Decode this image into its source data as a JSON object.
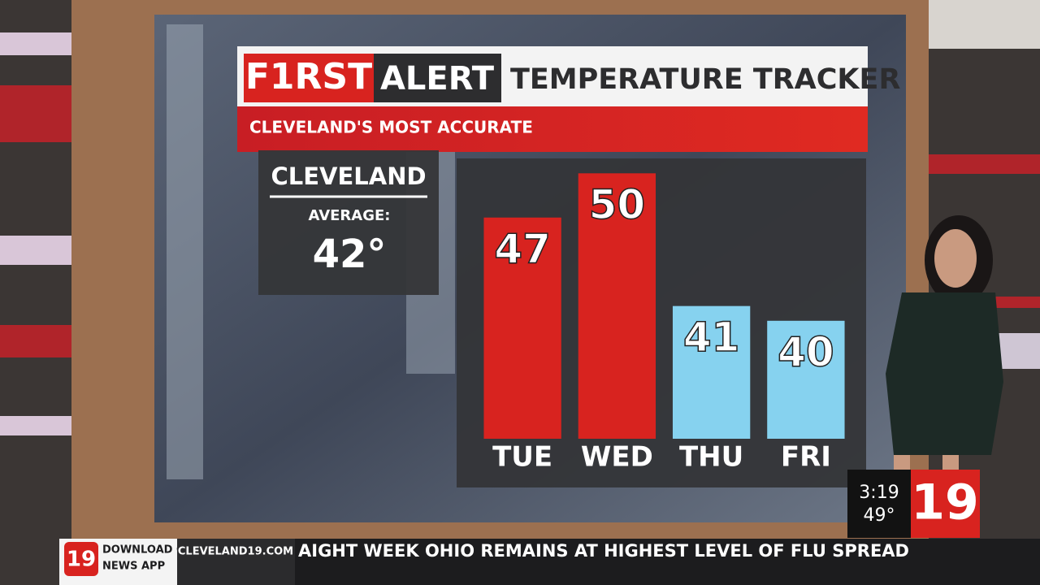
{
  "header": {
    "brand_first": "F1RST",
    "brand_alert": "ALERT",
    "title": "TEMPERATURE TRACKER",
    "subtitle": "CLEVELAND'S MOST ACCURATE"
  },
  "average_panel": {
    "city": "CLEVELAND",
    "label": "AVERAGE:",
    "value": "42°"
  },
  "chart_data": {
    "type": "bar",
    "categories": [
      "TUE",
      "WED",
      "THU",
      "FRI"
    ],
    "values": [
      47,
      50,
      41,
      40
    ],
    "colors": [
      "#d8231f",
      "#d8231f",
      "#86d2ef",
      "#86d2ef"
    ],
    "ylim": [
      32,
      52
    ]
  },
  "ticker": {
    "logo": "19",
    "app_line1": "DOWNLOAD OUR",
    "app_line2": "NEWS APP",
    "site": "CLEVELAND19.COM",
    "headline": "AIGHT WEEK OHIO REMAINS AT HIGHEST LEVEL OF FLU SPREAD"
  },
  "clock": {
    "time": "3:19",
    "temp": "49°",
    "logo": "19"
  }
}
